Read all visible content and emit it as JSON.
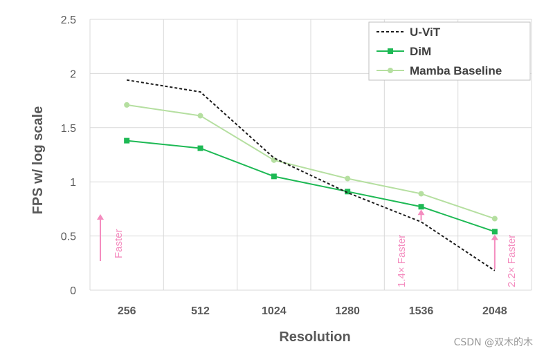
{
  "chart_data": {
    "type": "line",
    "xlabel": "Resolution",
    "ylabel": "FPS w/ log scale",
    "categories": [
      "256",
      "512",
      "1024",
      "1280",
      "1536",
      "2048"
    ],
    "ylim": [
      0,
      2.5
    ],
    "yticks": [
      "0",
      "0.5",
      "1",
      "1.5",
      "2",
      "2.5"
    ],
    "grid": true,
    "legend_position": "top-right",
    "series": [
      {
        "name": "U-ViT",
        "color": "#1a1a1a",
        "style": "dashed",
        "marker": "none",
        "values": [
          1.94,
          1.83,
          1.22,
          0.9,
          0.63,
          0.18
        ]
      },
      {
        "name": "DiM",
        "color": "#1db954",
        "style": "solid",
        "marker": "square",
        "values": [
          1.38,
          1.31,
          1.05,
          0.91,
          0.77,
          0.54
        ]
      },
      {
        "name": "Mamba Baseline",
        "color": "#b5dfa0",
        "style": "solid",
        "marker": "circle",
        "values": [
          1.71,
          1.61,
          1.2,
          1.03,
          0.89,
          0.66
        ]
      }
    ],
    "annotations": [
      {
        "text": "Faster",
        "color": "#f48cbf"
      },
      {
        "text": "1.4× Faster",
        "color": "#f48cbf"
      },
      {
        "text": "2.2× Faster",
        "color": "#f48cbf"
      }
    ]
  },
  "watermark": "CSDN @双木的木"
}
